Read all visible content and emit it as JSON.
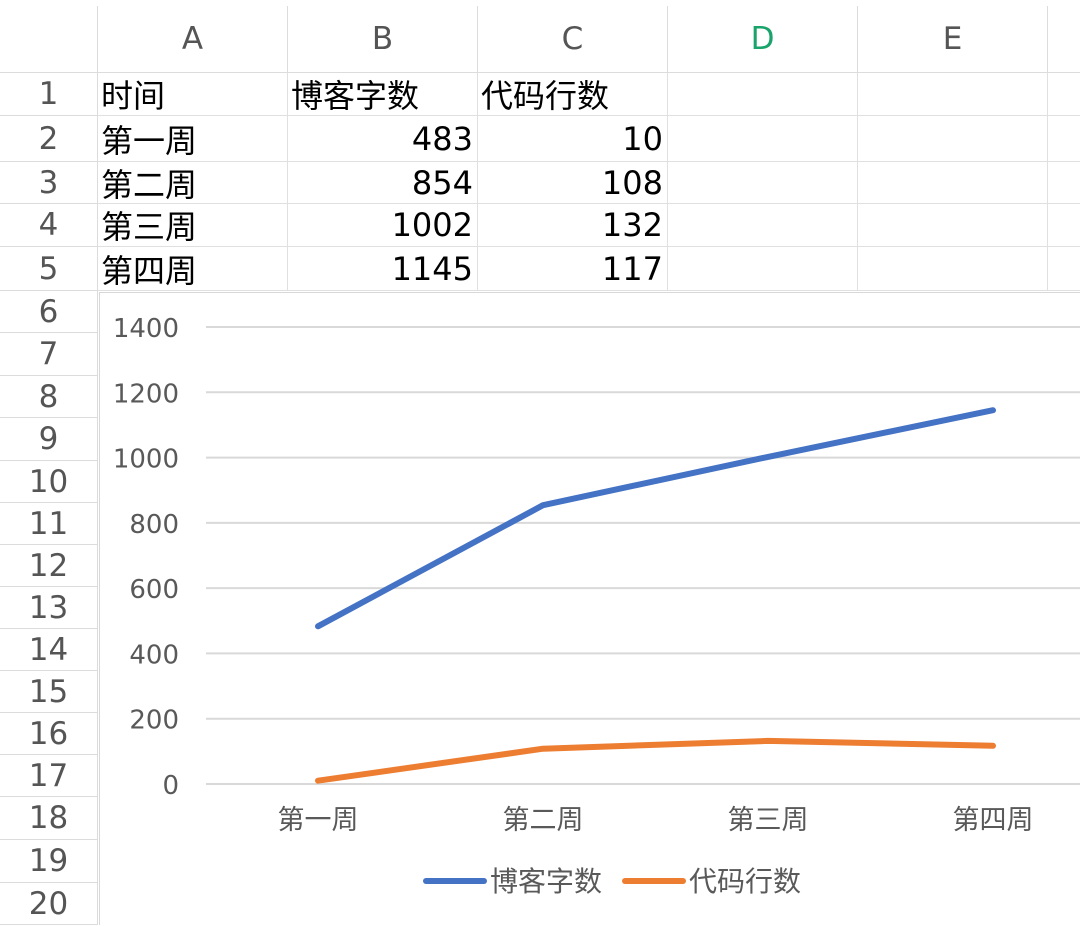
{
  "columns": [
    "A",
    "B",
    "C",
    "D",
    "E"
  ],
  "active_column": "D",
  "rows": [
    "1",
    "2",
    "3",
    "4",
    "5",
    "6",
    "7",
    "8",
    "9",
    "10",
    "11",
    "12",
    "13",
    "14",
    "15",
    "16",
    "17",
    "18",
    "19",
    "20"
  ],
  "table": {
    "headers": [
      "时间",
      "博客字数",
      "代码行数"
    ],
    "rows": [
      [
        "第一周",
        "483",
        "10"
      ],
      [
        "第二周",
        "854",
        "108"
      ],
      [
        "第三周",
        "1002",
        "132"
      ],
      [
        "第四周",
        "1145",
        "117"
      ]
    ]
  },
  "chart_data": {
    "type": "line",
    "categories": [
      "第一周",
      "第二周",
      "第三周",
      "第四周"
    ],
    "series": [
      {
        "name": "博客字数",
        "values": [
          483,
          854,
          1002,
          1145
        ],
        "color": "#4472c4"
      },
      {
        "name": "代码行数",
        "values": [
          10,
          108,
          132,
          117
        ],
        "color": "#ed7d31"
      }
    ],
    "y_ticks": [
      "0",
      "200",
      "400",
      "600",
      "800",
      "1000",
      "1200",
      "1400"
    ],
    "ylim": [
      0,
      1400
    ],
    "grid": true,
    "legend_position": "bottom",
    "title": "",
    "xlabel": "",
    "ylabel": ""
  }
}
